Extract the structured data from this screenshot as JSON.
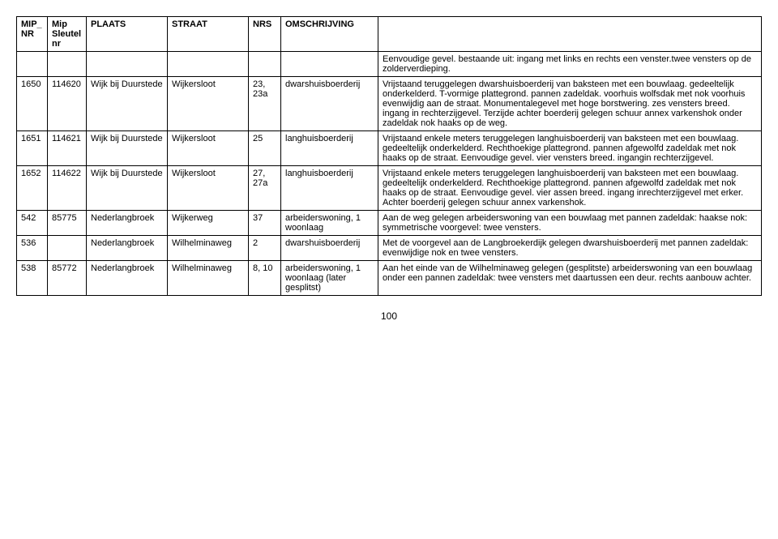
{
  "headers": {
    "mip_nr": "MIP_\nNR",
    "mip_sleutel": "Mip\nSleutel\nnr",
    "plaats": "PLAATS",
    "straat": "STRAAT",
    "nrs": "NRS",
    "omschrijving": "OMSCHRIJVING"
  },
  "rows": [
    {
      "mip_nr": "",
      "mip_sleutel": "",
      "plaats": "",
      "straat": "",
      "nrs": "",
      "omschrijving": "",
      "desc": "Eenvoudige gevel. bestaande uit: ingang met links en rechts een venster.twee vensters op de zolderverdieping."
    },
    {
      "mip_nr": "1650",
      "mip_sleutel": "114620",
      "plaats": "Wijk bij Duurstede",
      "straat": "Wijkersloot",
      "nrs": "23, 23a",
      "omschrijving": "dwarshuisboerderij",
      "desc": "Vrijstaand teruggelegen dwarshuisboerderij van baksteen met een bouwlaag. gedeeltelijk onderkelderd. T-vormige plattegrond. pannen zadeldak. voorhuis wolfsdak met  nok voorhuis evenwijdig aan de straat. Monumentalegevel met hoge borstwering. zes vensters breed. ingang in rechterzijgevel. Terzijde achter boerderij gelegen schuur annex varkenshok  onder zadeldak nok haaks op de weg."
    },
    {
      "mip_nr": "1651",
      "mip_sleutel": "114621",
      "plaats": "Wijk bij Duurstede",
      "straat": "Wijkersloot",
      "nrs": "25",
      "omschrijving": "langhuisboerderij",
      "desc": "Vrijstaand enkele meters teruggelegen langhuisboerderij van baksteen met een bouwlaag. gedeeltelijk onderkelderd. Rechthoekige plattegrond. pannen afgewolfd zadeldak met nok haaks op de  straat. Eenvoudige gevel. vier vensters breed. ingangin rechterzijgevel."
    },
    {
      "mip_nr": "1652",
      "mip_sleutel": "114622",
      "plaats": "Wijk bij Duurstede",
      "straat": "Wijkersloot",
      "nrs": "27, 27a",
      "omschrijving": "langhuisboerderij",
      "desc": "Vrijstaand enkele meters teruggelegen langhuisboerderij van baksteen met een bouwlaag. gedeeltelijk onderkelderd. Rechthoekige plattegrond. pannen afgewolfd zadeldak met nok haaks op de  straat. Eenvoudige gevel. vier assen breed. ingang inrechterzijgevel met erker. Achter boerderij gelegen schuur annex varkenshok."
    },
    {
      "mip_nr": "542",
      "mip_sleutel": "85775",
      "plaats": "Nederlangbroek",
      "straat": "Wijkerweg",
      "nrs": "37",
      "omschrijving": "arbeiderswoning, 1 woonlaag",
      "desc": "Aan de weg gelegen arbeiderswoning van een bouwlaag met pannen zadeldak: haakse nok: symmetrische voorgevel: twee vensters."
    },
    {
      "mip_nr": "536",
      "mip_sleutel": "",
      "plaats": "Nederlangbroek",
      "straat": "Wilhelminaweg",
      "nrs": "2",
      "omschrijving": "dwarshuisboerderij",
      "desc": "Met de voorgevel aan de Langbroekerdijk gelegen dwarshuisboerderij met pannen zadeldak: evenwijdige nok en twee vensters."
    },
    {
      "mip_nr": "538",
      "mip_sleutel": "85772",
      "plaats": "Nederlangbroek",
      "straat": "Wilhelminaweg",
      "nrs": "8, 10",
      "omschrijving": "arbeiderswoning, 1 woonlaag (later gesplitst)",
      "desc": "Aan het einde van de Wilhelminaweg gelegen (gesplitste) arbeiderswoning van een bouwlaag onder een pannen zadeldak: twee vensters met daartussen een deur. rechts aanbouw achter."
    }
  ],
  "page_number": "100"
}
